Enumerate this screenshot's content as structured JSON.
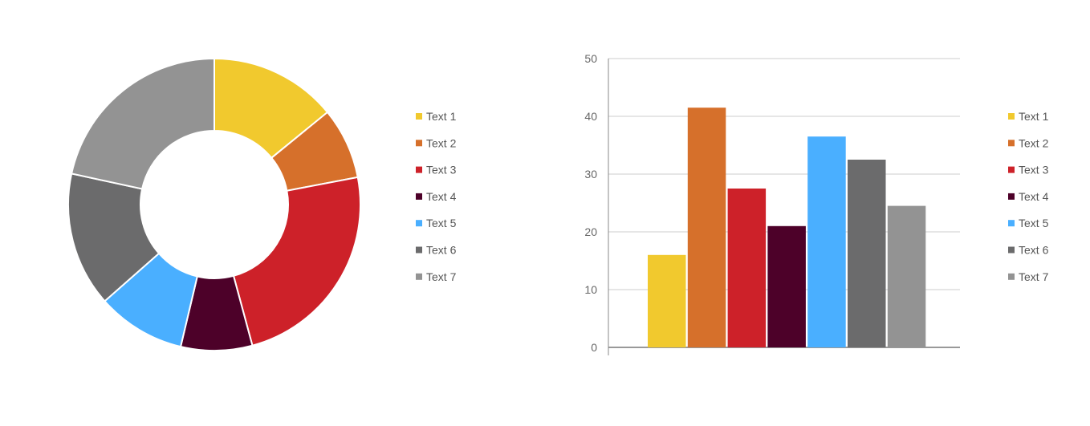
{
  "chart_data": [
    {
      "type": "pie",
      "donut": true,
      "categories": [
        "Text 1",
        "Text 2",
        "Text 3",
        "Text 4",
        "Text 5",
        "Text 6",
        "Text 7"
      ],
      "values": [
        14.1,
        7.9,
        23.8,
        7.9,
        9.8,
        14.9,
        21.6
      ],
      "colors": [
        "#F1C92E",
        "#D6702B",
        "#CD2129",
        "#4D0129",
        "#4AAFFF",
        "#6B6B6C",
        "#939393"
      ],
      "legend": {
        "position": "right",
        "labels": [
          "Text 1",
          "Text 2",
          "Text 3",
          "Text 4",
          "Text 5",
          "Text 6",
          "Text 7"
        ]
      }
    },
    {
      "type": "bar",
      "categories": [
        "Text 1",
        "Text 2",
        "Text 3",
        "Text 4",
        "Text 5",
        "Text 6",
        "Text 7"
      ],
      "values": [
        16,
        41.5,
        27.5,
        21,
        36.5,
        32.5,
        24.5
      ],
      "colors": [
        "#F1C92E",
        "#D6702B",
        "#CD2129",
        "#4D0129",
        "#4AAFFF",
        "#6B6B6C",
        "#939393"
      ],
      "ylim": [
        0,
        50
      ],
      "yticks": [
        "0",
        "10",
        "20",
        "30",
        "40",
        "50"
      ],
      "grid": true,
      "legend": {
        "position": "right",
        "labels": [
          "Text 1",
          "Text 2",
          "Text 3",
          "Text 4",
          "Text 5",
          "Text 6",
          "Text 7"
        ]
      }
    }
  ]
}
